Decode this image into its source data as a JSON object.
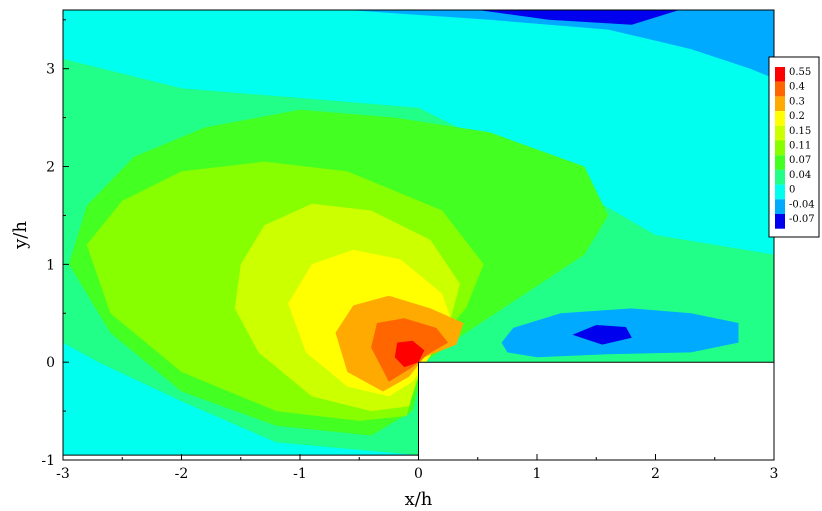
{
  "chart_data": {
    "type": "heatmap",
    "subtype": "contour",
    "title": "",
    "xlabel": "x/h",
    "ylabel": "y/h",
    "xlim": [
      -3,
      3
    ],
    "ylim": [
      -1,
      3.6
    ],
    "x_ticks": [
      -3,
      -2,
      -1,
      0,
      1,
      2,
      3
    ],
    "y_ticks": [
      -1,
      0,
      1,
      2,
      3
    ],
    "x_tick_labels": [
      "-3",
      "-2",
      "-1",
      "0",
      "1",
      "2",
      "3"
    ],
    "y_tick_labels": [
      "-1",
      "0",
      "1",
      "2",
      "3"
    ],
    "legend_position": "right",
    "levels": [
      {
        "label": "0.55",
        "value": 0.55,
        "color": "#ff0000"
      },
      {
        "label": "0.4",
        "value": 0.4,
        "color": "#ff6600"
      },
      {
        "label": "0.3",
        "value": 0.3,
        "color": "#ffaa00"
      },
      {
        "label": "0.2",
        "value": 0.2,
        "color": "#ffff00"
      },
      {
        "label": "0.15",
        "value": 0.15,
        "color": "#ccff00"
      },
      {
        "label": "0.11",
        "value": 0.11,
        "color": "#88ff00"
      },
      {
        "label": "0.07",
        "value": 0.07,
        "color": "#44ff22"
      },
      {
        "label": "0.04",
        "value": 0.04,
        "color": "#22ff88"
      },
      {
        "label": "0",
        "value": 0,
        "color": "#00ffee"
      },
      {
        "label": "-0.04",
        "value": -0.04,
        "color": "#00aaff"
      },
      {
        "label": "-0.07",
        "value": -0.07,
        "color": "#0000ee"
      }
    ],
    "regions": [
      {
        "level": "-0.04",
        "points": [
          [
            -0.6,
            3.6
          ],
          [
            0.6,
            3.5
          ],
          [
            1.6,
            3.4
          ],
          [
            2.3,
            3.2
          ],
          [
            2.8,
            3.0
          ],
          [
            3,
            2.9
          ],
          [
            3,
            3.6
          ]
        ]
      },
      {
        "level": "-0.07",
        "points": [
          [
            0.5,
            3.6
          ],
          [
            1.1,
            3.5
          ],
          [
            1.8,
            3.45
          ],
          [
            2.2,
            3.6
          ]
        ]
      },
      {
        "level": "0.04",
        "points": [
          [
            -3,
            3.1
          ],
          [
            -2,
            2.8
          ],
          [
            -1,
            2.7
          ],
          [
            0,
            2.6
          ],
          [
            1,
            2.0
          ],
          [
            2,
            1.3
          ],
          [
            3,
            1.1
          ],
          [
            3,
            -0.95
          ],
          [
            0.6,
            -0.95
          ],
          [
            0,
            -0.95
          ],
          [
            -1.2,
            -0.82
          ],
          [
            -2,
            -0.4
          ],
          [
            -2.7,
            0.0
          ],
          [
            -3,
            0.2
          ]
        ]
      },
      {
        "level": "0.07",
        "points": [
          [
            -2.95,
            1.0
          ],
          [
            -2.8,
            1.6
          ],
          [
            -2.4,
            2.1
          ],
          [
            -1.8,
            2.4
          ],
          [
            -1.0,
            2.58
          ],
          [
            -0.2,
            2.5
          ],
          [
            0.6,
            2.35
          ],
          [
            1.4,
            2.0
          ],
          [
            1.6,
            1.5
          ],
          [
            1.4,
            1.1
          ],
          [
            0.9,
            0.7
          ],
          [
            0.4,
            0.3
          ],
          [
            0.05,
            0.0
          ],
          [
            -0.05,
            -0.5
          ],
          [
            -0.4,
            -0.75
          ],
          [
            -1.2,
            -0.65
          ],
          [
            -2.0,
            -0.3
          ],
          [
            -2.6,
            0.3
          ]
        ]
      },
      {
        "level": "0.11",
        "points": [
          [
            -2.8,
            1.2
          ],
          [
            -2.5,
            1.65
          ],
          [
            -2.0,
            1.95
          ],
          [
            -1.3,
            2.05
          ],
          [
            -0.6,
            1.95
          ],
          [
            0.2,
            1.55
          ],
          [
            0.55,
            1.0
          ],
          [
            0.4,
            0.55
          ],
          [
            0.15,
            0.2
          ],
          [
            0.0,
            -0.1
          ],
          [
            -0.1,
            -0.55
          ],
          [
            -0.5,
            -0.6
          ],
          [
            -1.2,
            -0.5
          ],
          [
            -2.0,
            -0.1
          ],
          [
            -2.6,
            0.5
          ]
        ]
      },
      {
        "level": "0.15",
        "points": [
          [
            -1.5,
            1.0
          ],
          [
            -1.3,
            1.4
          ],
          [
            -0.9,
            1.62
          ],
          [
            -0.4,
            1.55
          ],
          [
            0.1,
            1.25
          ],
          [
            0.35,
            0.8
          ],
          [
            0.25,
            0.35
          ],
          [
            0.05,
            0.05
          ],
          [
            -0.08,
            -0.45
          ],
          [
            -0.4,
            -0.5
          ],
          [
            -0.9,
            -0.35
          ],
          [
            -1.35,
            0.1
          ],
          [
            -1.55,
            0.55
          ]
        ]
      },
      {
        "level": "0.2",
        "points": [
          [
            -1.1,
            0.6
          ],
          [
            -0.9,
            1.0
          ],
          [
            -0.55,
            1.15
          ],
          [
            -0.15,
            1.05
          ],
          [
            0.2,
            0.7
          ],
          [
            0.3,
            0.35
          ],
          [
            0.12,
            0.1
          ],
          [
            -0.05,
            -0.2
          ],
          [
            -0.25,
            -0.35
          ],
          [
            -0.6,
            -0.25
          ],
          [
            -0.95,
            0.1
          ]
        ]
      },
      {
        "level": "0.3",
        "points": [
          [
            -0.7,
            0.3
          ],
          [
            -0.55,
            0.58
          ],
          [
            -0.25,
            0.68
          ],
          [
            0.1,
            0.55
          ],
          [
            0.38,
            0.4
          ],
          [
            0.32,
            0.18
          ],
          [
            0.05,
            0.05
          ],
          [
            -0.08,
            -0.15
          ],
          [
            -0.3,
            -0.3
          ],
          [
            -0.6,
            -0.1
          ]
        ]
      },
      {
        "level": "0.4",
        "points": [
          [
            -0.4,
            0.15
          ],
          [
            -0.35,
            0.4
          ],
          [
            -0.12,
            0.45
          ],
          [
            0.15,
            0.35
          ],
          [
            0.25,
            0.2
          ],
          [
            0.08,
            0.08
          ],
          [
            -0.05,
            -0.05
          ],
          [
            -0.25,
            -0.2
          ]
        ]
      },
      {
        "level": "0.55",
        "points": [
          [
            -0.2,
            0.05
          ],
          [
            -0.18,
            0.2
          ],
          [
            -0.05,
            0.22
          ],
          [
            0.05,
            0.12
          ],
          [
            0.0,
            0.0
          ],
          [
            -0.12,
            -0.05
          ]
        ]
      },
      {
        "level": "-0.04",
        "points": [
          [
            0.7,
            0.2
          ],
          [
            0.8,
            0.35
          ],
          [
            1.2,
            0.5
          ],
          [
            1.8,
            0.55
          ],
          [
            2.3,
            0.5
          ],
          [
            2.7,
            0.4
          ],
          [
            2.7,
            0.2
          ],
          [
            2.3,
            0.1
          ],
          [
            1.6,
            0.08
          ],
          [
            1.0,
            0.05
          ],
          [
            0.75,
            0.1
          ]
        ]
      },
      {
        "level": "-0.07",
        "points": [
          [
            1.3,
            0.28
          ],
          [
            1.5,
            0.38
          ],
          [
            1.75,
            0.36
          ],
          [
            1.8,
            0.25
          ],
          [
            1.55,
            0.18
          ]
        ]
      }
    ]
  }
}
